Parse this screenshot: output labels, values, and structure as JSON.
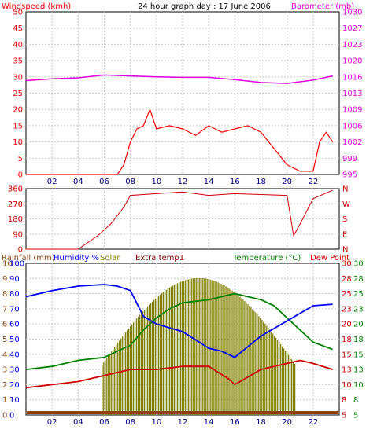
{
  "title": "24 hour graph day : 17 June 2006",
  "colors": {
    "windspeed": "#ff0000",
    "wind_avg": "#0000cc",
    "barometer": "#dd00dd",
    "direction": "#cc0000",
    "rain": "#8b4513",
    "humidity": "#0000ff",
    "solar": "#808000",
    "extra": "#800000",
    "temperature": "#008000",
    "dewpoint": "#cc0000"
  },
  "panel1": {
    "left_label": "Windspeed (kmh)",
    "right_label": "Barometer (mb)",
    "left_ticks": [
      "0",
      "5",
      "10",
      "15",
      "20",
      "25",
      "30",
      "35",
      "40",
      "45",
      "50"
    ],
    "right_ticks": [
      "995",
      "999",
      "1002",
      "1006",
      "1009",
      "1013",
      "1016",
      "1020",
      "1023",
      "1027",
      "1030"
    ]
  },
  "panel2": {
    "left_ticks": [
      "0",
      "90",
      "180",
      "270",
      "360"
    ],
    "right_ticks": [
      "N",
      "E",
      "S",
      "W",
      "N"
    ]
  },
  "panel3": {
    "labels": {
      "rainfall": "Rainfall (mm)",
      "humidity": "Humidity %",
      "solar": "Solar",
      "extra": "Extra temp1",
      "temperature": "Temperature (°C)",
      "dewpoint": "Dew Point"
    },
    "rain_ticks": [
      "0",
      "1",
      "2",
      "3",
      "4",
      "5",
      "6",
      "7",
      "8",
      "9",
      "10"
    ],
    "humidity_ticks": [
      "0",
      "10",
      "20",
      "30",
      "40",
      "50",
      "60",
      "70",
      "80",
      "90",
      "100"
    ],
    "temp_left_ticks": [
      "5",
      "8",
      "10",
      "13",
      "15",
      "18",
      "20",
      "23",
      "25",
      "28",
      "30"
    ],
    "temp_right_ticks": [
      "5",
      "8",
      "10",
      "13",
      "15",
      "18",
      "20",
      "23",
      "25",
      "28",
      "30"
    ]
  },
  "x_ticks": [
    "02",
    "04",
    "06",
    "08",
    "10",
    "12",
    "14",
    "16",
    "18",
    "20",
    "22"
  ],
  "chart_data": [
    {
      "type": "line",
      "title": "24 hour graph day : 17 June 2006",
      "x_unit": "hour",
      "series": [
        {
          "name": "Windspeed (kmh)",
          "axis": "left",
          "ylim": [
            0,
            50
          ],
          "x": [
            0,
            2,
            5,
            7,
            7.5,
            8,
            8.5,
            9,
            9.5,
            10,
            11,
            12,
            13,
            14,
            15,
            16,
            17,
            18,
            19,
            20,
            21,
            22,
            22.5,
            23,
            23.5
          ],
          "values": [
            0,
            0,
            0,
            0,
            3,
            10,
            14,
            15,
            20,
            14,
            15,
            14,
            12,
            15,
            13,
            14,
            15,
            13,
            8,
            3,
            1,
            1,
            10,
            13,
            10
          ]
        },
        {
          "name": "Barometer (mb)",
          "axis": "right",
          "ylim": [
            995,
            1030
          ],
          "x": [
            0,
            2,
            4,
            6,
            8,
            10,
            12,
            14,
            16,
            18,
            20,
            22,
            23.5
          ],
          "values": [
            1015.2,
            1015.6,
            1015.8,
            1016.4,
            1016.2,
            1016.0,
            1015.9,
            1015.9,
            1015.4,
            1014.8,
            1014.6,
            1015.3,
            1016.2
          ]
        },
        {
          "name": "Wind direction",
          "axis": "left",
          "ylim": [
            0,
            360
          ],
          "x": [
            0,
            4,
            5.5,
            6.5,
            7.5,
            8,
            10,
            12,
            14,
            16,
            18,
            20,
            20.5,
            21,
            22,
            23.5
          ],
          "values": [
            0,
            0,
            80,
            150,
            250,
            320,
            330,
            340,
            320,
            330,
            325,
            320,
            80,
            150,
            300,
            350
          ]
        },
        {
          "name": "Temperature (°C)",
          "axis": "right",
          "ylim": [
            5,
            30
          ],
          "x": [
            0,
            2,
            4,
            6,
            8,
            9,
            10,
            11,
            12,
            14,
            16,
            18,
            19,
            20,
            21,
            22,
            23.5
          ],
          "values": [
            12.5,
            13,
            14,
            14.5,
            16.5,
            19,
            21,
            22.5,
            23.5,
            24,
            25,
            24,
            23,
            21,
            19,
            17,
            15.8
          ]
        },
        {
          "name": "Dew Point",
          "axis": "right",
          "ylim": [
            5,
            30
          ],
          "x": [
            0,
            2,
            4,
            6,
            8,
            10,
            12,
            14,
            15.5,
            16,
            18,
            20,
            21,
            22,
            23.5
          ],
          "values": [
            9.5,
            10,
            10.5,
            11.5,
            12.5,
            12.5,
            13,
            13,
            11,
            10,
            12.5,
            13.5,
            14,
            13.5,
            12.5
          ]
        },
        {
          "name": "Humidity %",
          "axis": "left",
          "ylim": [
            0,
            100
          ],
          "x": [
            0,
            2,
            4,
            6,
            7,
            8,
            9,
            10,
            12,
            14,
            15,
            16,
            17,
            18,
            20,
            22,
            23.5
          ],
          "values": [
            78,
            82,
            85,
            86,
            85,
            82,
            65,
            60,
            55,
            44,
            42,
            38,
            45,
            52,
            62,
            72,
            73
          ]
        }
      ]
    }
  ]
}
